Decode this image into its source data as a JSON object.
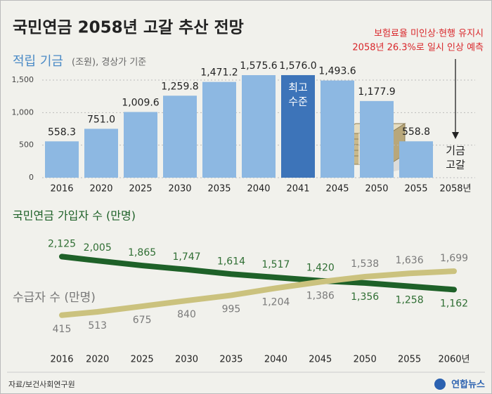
{
  "header": {
    "title": "국민연금 2058년 고갈 추산 전망",
    "note": [
      "보험료율 미인상·현행 유지시",
      "2058년 26.3%로 일시 인상 예측"
    ]
  },
  "chart_data": [
    {
      "type": "bar",
      "title": "적립 기금",
      "unit": "(조원), 경상가 기준",
      "categories": [
        "2016",
        "2020",
        "2025",
        "2030",
        "2035",
        "2040",
        "2041",
        "2045",
        "2050",
        "2055",
        "2058년"
      ],
      "values": [
        558.3,
        751.0,
        1009.6,
        1259.8,
        1471.2,
        1575.6,
        1576.0,
        1493.6,
        1177.9,
        558.8,
        null
      ],
      "value_labels": [
        "558.3",
        "751.0",
        "1,009.6",
        "1,259.8",
        "1,471.2",
        "1,575.6",
        "1,576.0",
        "1,493.6",
        "1,177.9",
        "558.8",
        null
      ],
      "color": "#8db8e2",
      "highlight": {
        "category": "2041",
        "label": [
          "최고",
          "수준"
        ],
        "color": "#3d74b9"
      },
      "end_note": {
        "category": "2058년",
        "label": [
          "기금",
          "고갈"
        ]
      },
      "ylim": [
        0,
        1650
      ],
      "yticks": [
        0,
        500,
        {
          "value": 1000,
          "label": "1,000"
        },
        {
          "value": 1500,
          "label": "1,500"
        }
      ],
      "grid": true
    },
    {
      "type": "line",
      "x": [
        2016,
        2020,
        2025,
        2030,
        2035,
        2040,
        2045,
        2050,
        2055,
        2060
      ],
      "xticks": [
        2016,
        2020,
        2025,
        2030,
        2035,
        2040,
        2045,
        2050,
        2055,
        {
          "value": 2060,
          "label": "2060년"
        }
      ],
      "xlim": [
        2016,
        2060
      ],
      "ylim": [
        0,
        2850
      ],
      "series": [
        {
          "name": "국민연금 가입자 수 (만명)",
          "color": "#1e6128",
          "label_color": "#2f6e33",
          "values": [
            2125,
            2005,
            1865,
            1747,
            1614,
            1517,
            1420,
            1356,
            1258,
            1162
          ],
          "value_labels": [
            "2,125",
            "2,005",
            "1,865",
            "1,747",
            "1,614",
            "1,517",
            "1,420",
            "1,356",
            "1,258",
            "1,162"
          ]
        },
        {
          "name": "수급자 수 (만명)",
          "color": "#cbc27e",
          "label_color": "#7a7a7a",
          "values": [
            415,
            513,
            675,
            840,
            995,
            1204,
            1386,
            1538,
            1636,
            1699
          ],
          "value_labels": [
            "415",
            "513",
            "675",
            "840",
            "995",
            "1,204",
            "1,386",
            "1,538",
            "1,636",
            "1,699"
          ]
        }
      ]
    }
  ],
  "source": "자료/보건사회연구원",
  "logo": "연합뉴스"
}
